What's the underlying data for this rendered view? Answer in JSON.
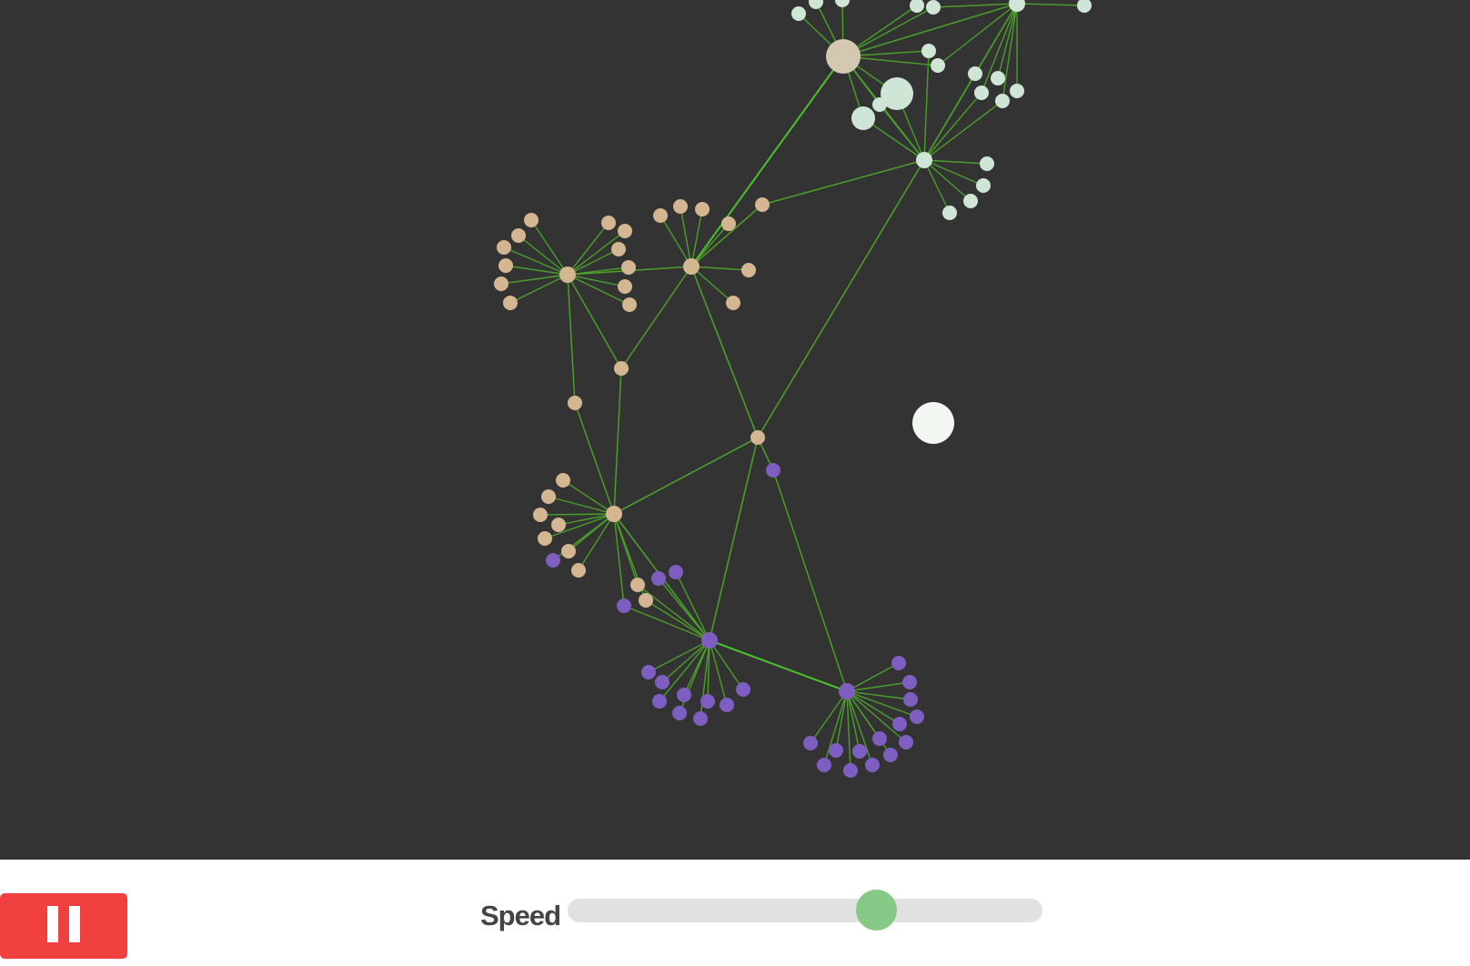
{
  "colors": {
    "background": "#333333",
    "edge": "#4a9e2a",
    "edge_bright": "#4cc02c",
    "cluster_tan": "#d5b692",
    "cluster_mint": "#cfe6d6",
    "cluster_purple": "#7f5ec2",
    "hub_beige": "#d4c9b0",
    "selected_node": "#f2f7f2",
    "pause_button": "#f04040",
    "slider_track": "#e1e1e1",
    "slider_thumb": "#86c986"
  },
  "controls": {
    "pause_icon": "pause-icon",
    "speed_label": "Speed",
    "speed_value": 0.65
  }
}
